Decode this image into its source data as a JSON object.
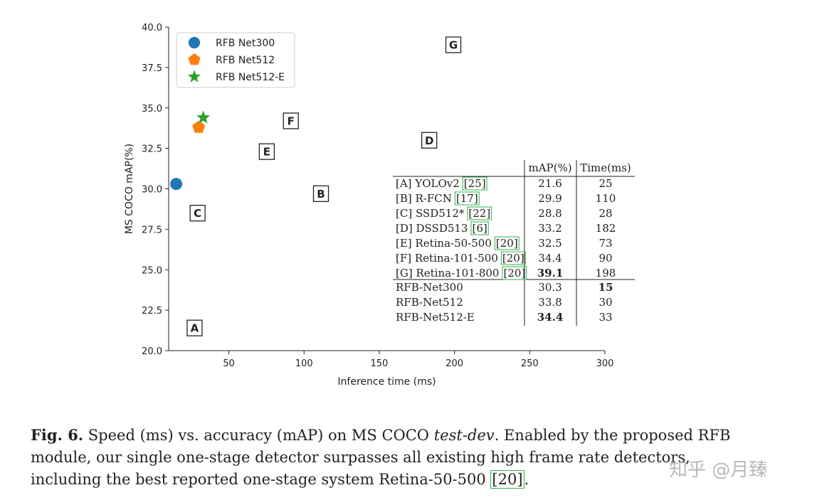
{
  "chart_data": {
    "type": "scatter",
    "xlabel": "Inference time (ms)",
    "ylabel": "MS COCO mAP(%)",
    "xlim": [
      10,
      300
    ],
    "ylim": [
      20.0,
      40.0
    ],
    "xticks": [
      50,
      100,
      150,
      200,
      250,
      300
    ],
    "yticks": [
      20.0,
      22.5,
      25.0,
      27.5,
      30.0,
      32.5,
      35.0,
      37.5,
      40.0
    ],
    "ytick_labels": [
      "20.0",
      "22.5",
      "25.0",
      "27.5",
      "30.0",
      "32.5",
      "35.0",
      "37.5",
      "40.0"
    ],
    "series": [
      {
        "name": "RFB Net300",
        "marker": "circle",
        "color": "#1f77b4",
        "x": 15,
        "y": 30.3
      },
      {
        "name": "RFB Net512",
        "marker": "pentagon",
        "color": "#ff7f0e",
        "x": 30,
        "y": 33.8
      },
      {
        "name": "RFB Net512-E",
        "marker": "star",
        "color": "#2ca02c",
        "x": 33,
        "y": 34.4
      }
    ],
    "legend_position": "top-left",
    "box_labels": [
      {
        "label": "A",
        "x": 27,
        "y": 21.4
      },
      {
        "label": "B",
        "x": 111,
        "y": 29.7
      },
      {
        "label": "C",
        "x": 29,
        "y": 28.5
      },
      {
        "label": "D",
        "x": 183,
        "y": 33.0
      },
      {
        "label": "E",
        "x": 75,
        "y": 32.3
      },
      {
        "label": "F",
        "x": 91,
        "y": 34.2
      },
      {
        "label": "G",
        "x": 199,
        "y": 38.9
      }
    ],
    "table": {
      "columns": [
        "mAP(%)",
        "Time(ms)"
      ],
      "rows": [
        {
          "name": "[A] YOLOv2",
          "ref": "25",
          "map": "21.6",
          "time": "25"
        },
        {
          "name": "[B] R-FCN",
          "ref": "17",
          "map": "29.9",
          "time": "110"
        },
        {
          "name": "[C] SSD512*",
          "ref": "22",
          "map": "28.8",
          "time": "28"
        },
        {
          "name": "[D] DSSD513",
          "ref": "6",
          "map": "33.2",
          "time": "182"
        },
        {
          "name": "[E] Retina-50-500",
          "ref": "20",
          "map": "32.5",
          "time": "73"
        },
        {
          "name": "[F] Retina-101-500",
          "ref": "20",
          "map": "34.4",
          "time": "90"
        },
        {
          "name": "[G] Retina-101-800",
          "ref": "20",
          "map": "39.1",
          "time": "198",
          "map_bold": true
        }
      ],
      "ours": [
        {
          "name": "RFB-Net300",
          "map": "30.3",
          "time": "15",
          "time_bold": true
        },
        {
          "name": "RFB-Net512",
          "map": "33.8",
          "time": "30"
        },
        {
          "name": "RFB-Net512-E",
          "map": "34.4",
          "time": "33",
          "map_bold": true
        }
      ]
    }
  },
  "caption": {
    "fig_label": "Fig. 6.",
    "part1": " Speed (ms) vs. accuracy (mAP) on MS COCO ",
    "italic": "test-dev",
    "part2": ". Enabled by the proposed RFB module, our single one-stage detector surpasses all existing high frame rate detectors, including the best reported one-stage system Retina-50-500 ",
    "ref": "[20]",
    "part3": "."
  },
  "watermark": "知乎 @月臻"
}
